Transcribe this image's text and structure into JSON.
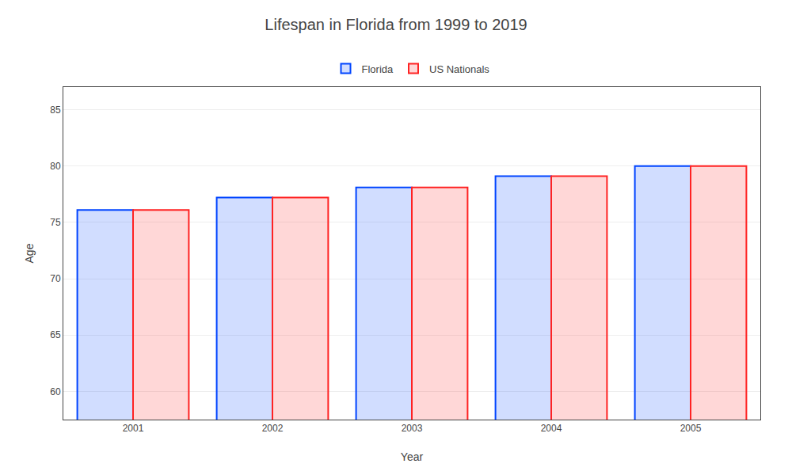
{
  "chart_data": {
    "type": "bar",
    "title": "Lifespan in Florida from 1999 to 2019",
    "x_label": "Year",
    "y_label": "Age",
    "categories": [
      "2001",
      "2002",
      "2003",
      "2004",
      "2005"
    ],
    "series": [
      {
        "name": "Florida",
        "color": "#0044ff",
        "values": [
          76.1,
          77.2,
          78.1,
          79.1,
          80.0
        ]
      },
      {
        "name": "US Nationals",
        "color": "#ff2222",
        "values": [
          76.1,
          77.2,
          78.1,
          79.1,
          80.0
        ]
      }
    ],
    "ylim": [
      57.5,
      87
    ],
    "yticks": [
      60,
      65,
      70,
      75,
      80,
      85
    ],
    "grid": true,
    "legend": "top"
  }
}
